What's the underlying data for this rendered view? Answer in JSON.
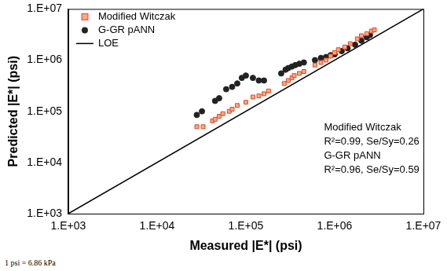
{
  "chart_data": {
    "type": "scatter",
    "x_label": "Measured |E*| (psi)",
    "y_label": "Predicted |E*| (psi)",
    "log": true,
    "grid": false,
    "legend": "top-left",
    "xlim": [
      1000,
      10000000
    ],
    "ylim": [
      1000,
      10000000
    ],
    "xticks": [
      {
        "value": 1000,
        "label": "1.E+03"
      },
      {
        "value": 10000,
        "label": "1.E+04"
      },
      {
        "value": 100000,
        "label": "1.E+05"
      },
      {
        "value": 1000000,
        "label": "1.E+06"
      },
      {
        "value": 10000000,
        "label": "1.E+07"
      }
    ],
    "yticks": [
      {
        "value": 1000,
        "label": "1.E+03"
      },
      {
        "value": 10000,
        "label": "1.E+04"
      },
      {
        "value": 100000,
        "label": "1.E+05"
      },
      {
        "value": 1000000,
        "label": "1.E+06"
      },
      {
        "value": 10000000,
        "label": "1.E+07"
      }
    ],
    "series": [
      {
        "name": "Modified Witczak",
        "color": "#f7a88a",
        "marker": "square",
        "x": [
          28000,
          33000,
          42000,
          45000,
          50000,
          55000,
          65000,
          70000,
          80000,
          100000,
          120000,
          140000,
          160000,
          180000,
          270000,
          300000,
          330000,
          350000,
          400000,
          450000,
          600000,
          700000,
          800000,
          900000,
          1000000,
          1100000,
          1300000,
          1500000,
          1800000,
          2000000,
          2300000,
          2600000,
          2800000
        ],
        "values": [
          50000,
          50000,
          65000,
          70000,
          80000,
          90000,
          100000,
          110000,
          130000,
          150000,
          190000,
          200000,
          220000,
          250000,
          350000,
          400000,
          450000,
          500000,
          550000,
          600000,
          800000,
          900000,
          1000000,
          1200000,
          1400000,
          1600000,
          1800000,
          2100000,
          2600000,
          3000000,
          3300000,
          3700000,
          3900000
        ]
      },
      {
        "name": "G-GR pANN",
        "color": "#222222",
        "marker": "circle",
        "x": [
          28000,
          32000,
          45000,
          50000,
          60000,
          70000,
          80000,
          90000,
          100000,
          120000,
          140000,
          160000,
          250000,
          280000,
          300000,
          330000,
          360000,
          400000,
          450000,
          600000,
          700000,
          800000,
          900000,
          1000000,
          1200000,
          1400000,
          1700000,
          2000000,
          2300000,
          2500000
        ],
        "values": [
          85000,
          100000,
          160000,
          180000,
          270000,
          300000,
          350000,
          450000,
          500000,
          450000,
          400000,
          400000,
          550000,
          650000,
          700000,
          750000,
          800000,
          850000,
          900000,
          1000000,
          1100000,
          1150000,
          1250000,
          1300000,
          1500000,
          1700000,
          2000000,
          2400000,
          2800000,
          3100000
        ]
      },
      {
        "name": "LOE",
        "color": "#000000",
        "type": "line",
        "line_style": "solid",
        "marker": "none",
        "x": [
          1000,
          10000000
        ],
        "values": [
          1000,
          10000000
        ]
      }
    ],
    "annotations": [
      "Modified Witczak",
      "R²=0.99, Se/Sy=0.26",
      "G-GR pANN",
      "R²=0.96, Se/Sy=0.59"
    ],
    "footnote": "1 psi = 6.86 kPa"
  }
}
